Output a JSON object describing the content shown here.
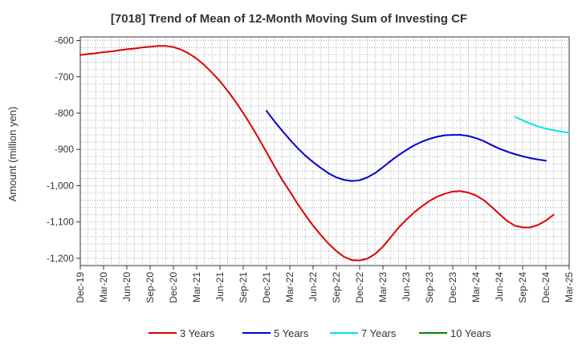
{
  "chart_data": {
    "type": "line",
    "title": "[7018]  Trend of Mean of 12-Month Moving Sum of Investing CF",
    "xlabel": "",
    "ylabel": "Amount (million yen)",
    "ylim": [
      -1220,
      -590
    ],
    "yticks": [
      -600,
      -700,
      -800,
      -900,
      -1000,
      -1100,
      -1200
    ],
    "ytick_labels": [
      "-600",
      "-700",
      "-800",
      "-900",
      "-1,000",
      "-1,100",
      "-1,200"
    ],
    "x_labels": [
      "Dec-19",
      "Mar-20",
      "Jun-20",
      "Sep-20",
      "Dec-20",
      "Mar-21",
      "Jun-21",
      "Sep-21",
      "Dec-21",
      "Mar-22",
      "Jun-22",
      "Sep-22",
      "Dec-22",
      "Mar-23",
      "Jun-23",
      "Sep-23",
      "Dec-23",
      "Mar-24",
      "Jun-24",
      "Sep-24",
      "Dec-24",
      "Mar-25"
    ],
    "grid": true,
    "legend_position": "bottom",
    "series": [
      {
        "name": "3 Years",
        "color": "#dd0000",
        "start_index": 0,
        "values": [
          -640,
          -637,
          -635,
          -632,
          -630,
          -627,
          -624,
          -622,
          -619,
          -617,
          -615,
          -615,
          -618,
          -625,
          -636,
          -650,
          -668,
          -689,
          -712,
          -739,
          -768,
          -800,
          -834,
          -870,
          -908,
          -946,
          -983,
          -1016,
          -1050,
          -1081,
          -1110,
          -1136,
          -1160,
          -1180,
          -1196,
          -1205,
          -1206,
          -1201,
          -1188,
          -1168,
          -1142,
          -1116,
          -1094,
          -1074,
          -1057,
          -1042,
          -1030,
          -1022,
          -1016,
          -1015,
          -1019,
          -1027,
          -1040,
          -1058,
          -1078,
          -1097,
          -1110,
          -1115,
          -1115,
          -1108,
          -1096,
          -1080
        ]
      },
      {
        "name": "5 Years",
        "color": "#0000cc",
        "start_index": 24,
        "values": [
          -794,
          -822,
          -848,
          -873,
          -896,
          -917,
          -935,
          -951,
          -966,
          -977,
          -984,
          -987,
          -985,
          -977,
          -965,
          -949,
          -932,
          -916,
          -902,
          -889,
          -879,
          -871,
          -865,
          -861,
          -860,
          -860,
          -863,
          -869,
          -877,
          -888,
          -898,
          -906,
          -913,
          -919,
          -924,
          -928,
          -931
        ]
      },
      {
        "name": "7 Years",
        "color": "#00e5e5",
        "start_index": 56,
        "values": [
          -810,
          -820,
          -829,
          -837,
          -843,
          -847,
          -851,
          -854
        ]
      },
      {
        "name": "10 Years",
        "color": "#008800",
        "start_index": 0,
        "values": []
      }
    ]
  }
}
